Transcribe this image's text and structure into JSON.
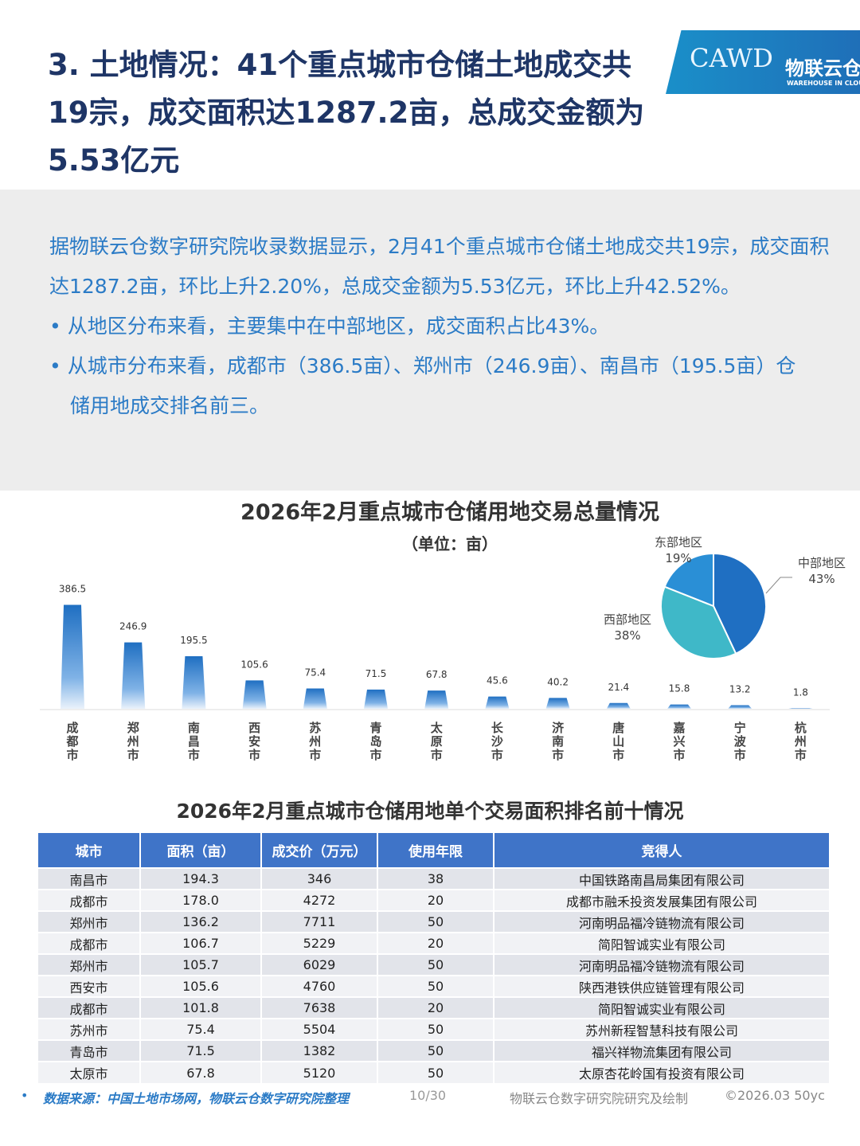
{
  "header": {
    "title": "3. 土地情况：41个重点城市仓储土地成交共19宗，成交面积达1287.2亩，总成交金额为5.53亿元",
    "logo_text": "CAWD",
    "logo_cn": "物联云仓",
    "logo_en": "WAREHOUSE IN CLOUD"
  },
  "summary": {
    "para": "据物联云仓数字研究院收录数据显示，2月41个重点城市仓储土地成交共19宗，成交面积达1287.2亩，环比上升2.20%，总成交金额为5.53亿元，环比上升42.52%。",
    "bullets": [
      "从地区分布来看，主要集中在中部地区，成交面积占比43%。",
      "从城市分布来看，成都市（386.5亩）、郑州市（246.9亩）、南昌市（195.5亩）仓储用地成交排名前三。"
    ]
  },
  "chart_data": [
    {
      "type": "bar",
      "title": "2026年2月重点城市仓储用地交易总量情况",
      "subtitle": "（单位：亩）",
      "categories": [
        "成都市",
        "郑州市",
        "南昌市",
        "西安市",
        "苏州市",
        "青岛市",
        "太原市",
        "长沙市",
        "济南市",
        "唐山市",
        "嘉兴市",
        "宁波市",
        "杭州市"
      ],
      "values": [
        386.5,
        246.9,
        195.5,
        105.6,
        75.4,
        71.5,
        67.8,
        45.6,
        40.2,
        21.4,
        15.8,
        13.2,
        1.8
      ],
      "color": "#1f6fc2"
    },
    {
      "type": "pie",
      "labels": [
        "中部地区",
        "西部地区",
        "东部地区"
      ],
      "values": [
        43,
        38,
        19
      ],
      "value_labels": [
        "43%",
        "38%",
        "19%"
      ],
      "colors": [
        "#1f6fc2",
        "#3fb8c8",
        "#2a8fd6"
      ]
    }
  ],
  "table": {
    "title": "2026年2月重点城市仓储用地单个交易面积排名前十情况",
    "headers": [
      "城市",
      "面积（亩）",
      "成交价（万元）",
      "使用年限",
      "竞得人"
    ],
    "rows": [
      [
        "南昌市",
        "194.3",
        "346",
        "38",
        "中国铁路南昌局集团有限公司"
      ],
      [
        "成都市",
        "178.0",
        "4272",
        "20",
        "成都市融禾投资发展集团有限公司"
      ],
      [
        "郑州市",
        "136.2",
        "7711",
        "50",
        "河南明品福冷链物流有限公司"
      ],
      [
        "成都市",
        "106.7",
        "5229",
        "20",
        "简阳智诚实业有限公司"
      ],
      [
        "郑州市",
        "105.7",
        "6029",
        "50",
        "河南明品福冷链物流有限公司"
      ],
      [
        "西安市",
        "105.6",
        "4760",
        "50",
        "陕西港铁供应链管理有限公司"
      ],
      [
        "成都市",
        "101.8",
        "7638",
        "20",
        "简阳智诚实业有限公司"
      ],
      [
        "苏州市",
        "75.4",
        "5504",
        "50",
        "苏州新程智慧科技有限公司"
      ],
      [
        "青岛市",
        "71.5",
        "1382",
        "50",
        "福兴祥物流集团有限公司"
      ],
      [
        "太原市",
        "67.8",
        "5120",
        "50",
        "太原杏花岭国有投资有限公司"
      ]
    ]
  },
  "footer": {
    "source": "数据来源：中国土地市场网，物联云仓数字研究院整理",
    "page": "10/30",
    "credit": "物联云仓数字研究院研究及绘制",
    "copyright": "©2026.03 50yc"
  }
}
